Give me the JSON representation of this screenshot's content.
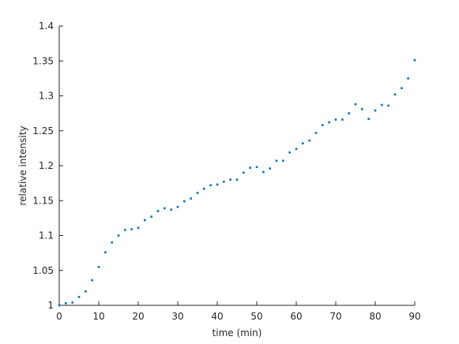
{
  "chart_data": {
    "type": "scatter",
    "xlabel": "time (min)",
    "ylabel": "relative intensity",
    "color": "#0072bd",
    "xlim": [
      0,
      90
    ],
    "xticks": [
      0,
      10,
      20,
      30,
      40,
      50,
      60,
      70,
      80,
      90
    ],
    "ylim": [
      1,
      1.4
    ],
    "yticks": [
      1,
      1.05,
      1.1,
      1.15,
      1.2,
      1.25,
      1.3,
      1.35,
      1.4
    ],
    "x": [
      0,
      1.67,
      3.33,
      5,
      6.67,
      8.33,
      10,
      11.67,
      13.33,
      15,
      16.67,
      18.33,
      20,
      21.67,
      23.33,
      25,
      26.67,
      28.33,
      30,
      31.67,
      33.33,
      35,
      36.67,
      38.33,
      40,
      41.67,
      43.33,
      45,
      46.67,
      48.33,
      50,
      51.67,
      53.33,
      55,
      56.67,
      58.33,
      60,
      61.67,
      63.33,
      65,
      66.67,
      68.33,
      70,
      71.67,
      73.33,
      75,
      76.67,
      78.33,
      80,
      81.67,
      83.33,
      85,
      86.67,
      88.33,
      90
    ],
    "values": [
      1.0,
      1.003,
      1.004,
      1.012,
      1.02,
      1.036,
      1.055,
      1.076,
      1.09,
      1.1,
      1.108,
      1.109,
      1.111,
      1.122,
      1.127,
      1.135,
      1.139,
      1.137,
      1.141,
      1.149,
      1.153,
      1.161,
      1.167,
      1.172,
      1.173,
      1.177,
      1.18,
      1.18,
      1.19,
      1.197,
      1.198,
      1.191,
      1.196,
      1.207,
      1.207,
      1.219,
      1.224,
      1.232,
      1.236,
      1.247,
      1.258,
      1.262,
      1.266,
      1.266,
      1.275,
      1.288,
      1.281,
      1.267,
      1.279,
      1.287,
      1.286,
      1.302,
      1.311,
      1.325,
      1.351
    ]
  }
}
